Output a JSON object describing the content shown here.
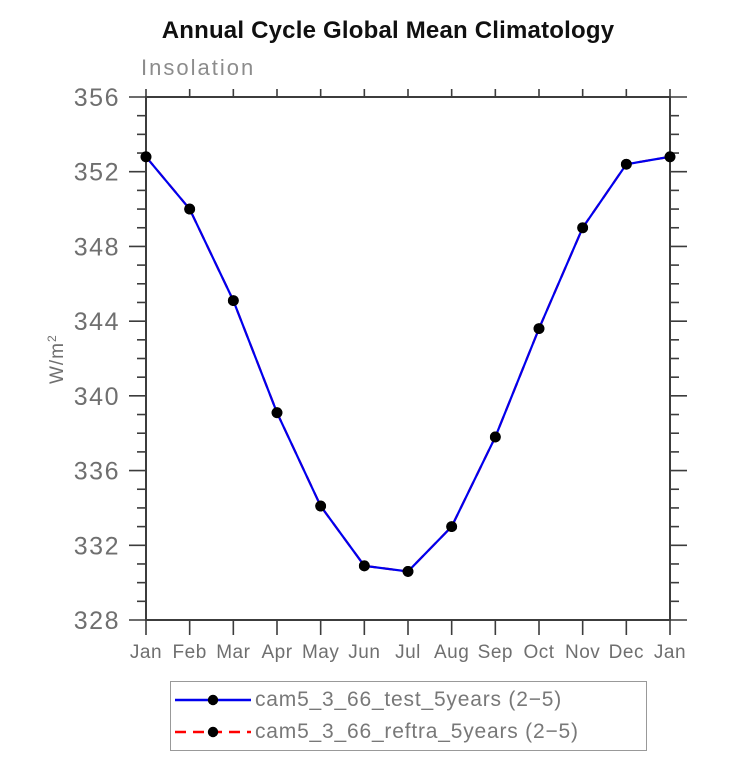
{
  "page": {
    "background": "#ffffff"
  },
  "chart_data": {
    "type": "line",
    "title": "Annual Cycle Global Mean Climatology",
    "subtitle": "Insolation",
    "ylabel": "W/m^2",
    "ylabel_base": "W/m",
    "ylabel_exp": "2",
    "xlabel": "",
    "categories": [
      "Jan",
      "Feb",
      "Mar",
      "Apr",
      "May",
      "Jun",
      "Jul",
      "Aug",
      "Sep",
      "Oct",
      "Nov",
      "Dec",
      "Jan"
    ],
    "ylim": [
      328,
      356
    ],
    "y_major_step": 4,
    "y_minor_step": 1,
    "grid": false,
    "legend_position": "bottom",
    "series": [
      {
        "name": "cam5_3_66_test_5years (2−5)",
        "color": "#0000ee",
        "line_style": "solid",
        "marker": "filled-circle",
        "marker_color": "#000000",
        "values": [
          352.8,
          350.0,
          345.1,
          339.1,
          334.1,
          330.9,
          330.6,
          333.0,
          337.8,
          343.6,
          349.0,
          352.4,
          352.8
        ]
      },
      {
        "name": "cam5_3_66_reftra_5years (2−5)",
        "color": "#ff0000",
        "line_style": "dashed",
        "marker": "filled-circle",
        "marker_color": "#000000",
        "hidden_behind_test_series": true,
        "values": [
          352.8,
          350.0,
          345.1,
          339.1,
          334.1,
          330.9,
          330.6,
          333.0,
          337.8,
          343.6,
          349.0,
          352.4,
          352.8
        ]
      }
    ]
  },
  "colors": {
    "axis": "#3c3c3c",
    "tick": "#3c3c3c",
    "tick_label": "#6f6f6f",
    "month_label": "#6f6f6f",
    "title": "#101010",
    "subtitle": "#8c8c8c",
    "legend_text": "#787878",
    "legend_border": "#999999"
  }
}
